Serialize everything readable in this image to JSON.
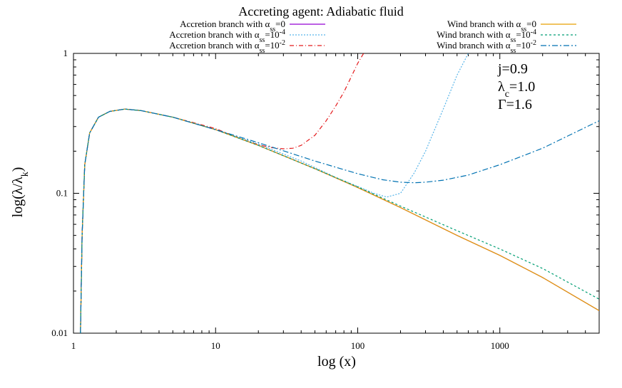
{
  "chart_data": {
    "type": "line",
    "title": "Accreting agent: Adiabatic fluid",
    "xlabel": "log (x)",
    "ylabel": "log(λ/λ_k)",
    "xscale": "log",
    "yscale": "log",
    "xlim": [
      1,
      5000
    ],
    "ylim": [
      0.01,
      1
    ],
    "xticks": [
      {
        "value": 1,
        "label": "1"
      },
      {
        "value": 10,
        "label": "10"
      },
      {
        "value": 100,
        "label": "100"
      },
      {
        "value": 1000,
        "label": "1000"
      }
    ],
    "yticks": [
      {
        "value": 0.01,
        "label": "0.01"
      },
      {
        "value": 0.1,
        "label": "0.1"
      },
      {
        "value": 1,
        "label": "1"
      }
    ],
    "annotations": [
      "j=0.9",
      "λc=1.0",
      "Γ=1.6"
    ],
    "series": [
      {
        "name": "Accretion branch with αss=0",
        "label_main": "Accretion branch with α",
        "label_sub": "ss",
        "label_eq": "=0",
        "label_sup": "",
        "color": "#9400d3",
        "dash": "",
        "column": "left",
        "x": [
          1.12,
          1.15,
          1.2,
          1.3,
          1.5,
          1.8,
          2.3,
          3,
          5,
          10,
          20,
          50,
          100,
          200,
          500,
          1000,
          2000,
          5000
        ],
        "y": [
          0.01,
          0.05,
          0.16,
          0.27,
          0.35,
          0.385,
          0.4,
          0.39,
          0.35,
          0.285,
          0.22,
          0.15,
          0.11,
          0.079,
          0.05,
          0.036,
          0.025,
          0.0145
        ]
      },
      {
        "name": "Accretion branch with αss=10^-4",
        "label_main": "Accretion branch with α",
        "label_sub": "ss",
        "label_eq": "=10",
        "label_sup": "-4",
        "color": "#56b4e9",
        "dash": "2,2",
        "column": "left",
        "x": [
          1.12,
          1.15,
          1.2,
          1.3,
          1.5,
          1.8,
          2.3,
          3,
          5,
          10,
          20,
          40,
          70,
          100,
          130,
          160,
          200,
          250,
          300,
          400,
          500,
          600
        ],
        "y": [
          0.01,
          0.05,
          0.16,
          0.27,
          0.35,
          0.385,
          0.4,
          0.39,
          0.35,
          0.285,
          0.225,
          0.17,
          0.13,
          0.112,
          0.1,
          0.094,
          0.1,
          0.14,
          0.2,
          0.4,
          0.7,
          1.0
        ]
      },
      {
        "name": "Accretion branch with αss=10^-2",
        "label_main": "Accretion branch with α",
        "label_sub": "ss",
        "label_eq": "=10",
        "label_sup": "-2",
        "color": "#e41a1c",
        "dash": "6,3,1,3",
        "column": "left",
        "x": [
          1.12,
          1.15,
          1.2,
          1.3,
          1.5,
          1.8,
          2.3,
          3,
          5,
          10,
          15,
          20,
          25,
          30,
          35,
          40,
          50,
          60,
          70,
          80,
          90,
          100,
          110
        ],
        "y": [
          0.01,
          0.05,
          0.16,
          0.27,
          0.35,
          0.385,
          0.4,
          0.39,
          0.35,
          0.29,
          0.245,
          0.222,
          0.212,
          0.208,
          0.21,
          0.22,
          0.26,
          0.33,
          0.42,
          0.53,
          0.68,
          0.85,
          1.0
        ]
      },
      {
        "name": "Wind branch with αss=0",
        "label_main": "Wind branch with α",
        "label_sub": "ss",
        "label_eq": "=0",
        "label_sup": "",
        "color": "#e69f00",
        "dash": "",
        "column": "right",
        "x": [
          1.12,
          1.15,
          1.2,
          1.3,
          1.5,
          1.8,
          2.3,
          3,
          5,
          10,
          20,
          50,
          100,
          200,
          500,
          1000,
          2000,
          5000
        ],
        "y": [
          0.01,
          0.05,
          0.16,
          0.27,
          0.35,
          0.385,
          0.4,
          0.39,
          0.35,
          0.285,
          0.22,
          0.15,
          0.11,
          0.079,
          0.05,
          0.036,
          0.025,
          0.0145
        ]
      },
      {
        "name": "Wind branch with αss=10^-4",
        "label_main": "Wind branch with α",
        "label_sub": "ss",
        "label_eq": "=10",
        "label_sup": "-4",
        "color": "#009e73",
        "dash": "3,3",
        "column": "right",
        "x": [
          1.12,
          1.15,
          1.2,
          1.3,
          1.5,
          1.8,
          2.3,
          3,
          5,
          10,
          20,
          50,
          100,
          200,
          500,
          1000,
          2000,
          5000
        ],
        "y": [
          0.01,
          0.05,
          0.16,
          0.27,
          0.35,
          0.385,
          0.4,
          0.39,
          0.35,
          0.285,
          0.22,
          0.15,
          0.111,
          0.081,
          0.054,
          0.04,
          0.029,
          0.0175
        ]
      },
      {
        "name": "Wind branch with αss=10^-2",
        "label_main": "Wind branch with α",
        "label_sub": "ss",
        "label_eq": "=10",
        "label_sup": "-2",
        "color": "#0072b2",
        "dash": "8,3,2,3",
        "column": "right",
        "x": [
          1.12,
          1.15,
          1.2,
          1.3,
          1.5,
          1.8,
          2.3,
          3,
          5,
          10,
          20,
          50,
          100,
          150,
          200,
          250,
          300,
          400,
          600,
          1000,
          2000,
          5000
        ],
        "y": [
          0.01,
          0.05,
          0.16,
          0.27,
          0.35,
          0.385,
          0.4,
          0.39,
          0.35,
          0.285,
          0.23,
          0.17,
          0.138,
          0.125,
          0.12,
          0.119,
          0.12,
          0.124,
          0.135,
          0.16,
          0.21,
          0.33
        ]
      }
    ]
  }
}
